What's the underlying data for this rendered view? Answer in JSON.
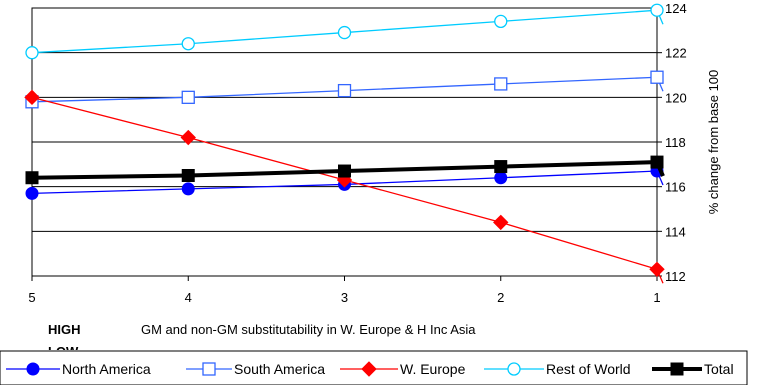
{
  "chart_data": {
    "type": "line",
    "title": "",
    "xlabel": "GM and non-GM substitutability in W. Europe & H Inc Asia",
    "ylabel": "% change from base 100",
    "note_left": "HIGH",
    "note_left_clipped": "LOW",
    "categories": [
      "5",
      "4",
      "3",
      "2",
      "1"
    ],
    "ylim": [
      112,
      124
    ],
    "yticks": [
      112,
      114,
      116,
      118,
      120,
      122,
      124
    ],
    "grid": true,
    "legend_position": "bottom",
    "series": [
      {
        "name": "North America",
        "color": "#0000ff",
        "marker": "circle-filled",
        "values": [
          115.7,
          115.9,
          116.1,
          116.4,
          116.7
        ],
        "line_width": 1.3
      },
      {
        "name": "South America",
        "color": "#3366ff",
        "marker": "square-open",
        "values": [
          119.8,
          120.0,
          120.3,
          120.6,
          120.9
        ],
        "line_width": 1.3
      },
      {
        "name": "W. Europe",
        "color": "#ff0000",
        "marker": "diamond-filled",
        "values": [
          120.0,
          118.2,
          116.3,
          114.4,
          112.3
        ],
        "line_width": 1.3
      },
      {
        "name": "Rest of World",
        "color": "#00ccff",
        "marker": "circle-open",
        "values": [
          122.0,
          122.4,
          122.9,
          123.4,
          123.9
        ],
        "line_width": 1.3
      },
      {
        "name": "Total",
        "color": "#000000",
        "marker": "square-filled",
        "values": [
          116.4,
          116.5,
          116.7,
          116.9,
          117.1
        ],
        "line_width": 4
      }
    ]
  }
}
